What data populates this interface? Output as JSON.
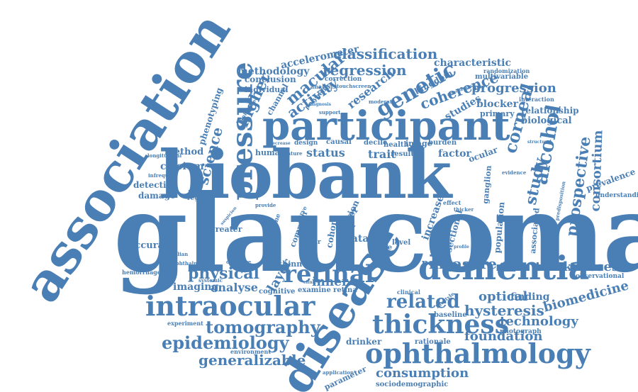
{
  "color": "#4a7fb5",
  "words": [
    "glaucoma",
    "association",
    "biobank",
    "participant",
    "disease",
    "dementia",
    "intraocular",
    "ophthalmology",
    "thickness",
    "retinal",
    "pressure",
    "tomography",
    "epidemiology",
    "genetic",
    "alcohol",
    "classification",
    "regression",
    "measure",
    "related",
    "physical",
    "corneal",
    "study",
    "prospective",
    "consortium",
    "hysteresis",
    "thicknesses",
    "optical",
    "biomedicine",
    "technology",
    "foundation",
    "generalizable",
    "consumption",
    "progression",
    "coherence",
    "activity",
    "macular",
    "higher",
    "science",
    "research",
    "methodology",
    "characteristic",
    "accelerometer",
    "phenotyping",
    "calcium",
    "method",
    "status",
    "trait",
    "inner",
    "layer",
    "analyse",
    "imaging",
    "risk",
    "data",
    "poag",
    "finding",
    "biological",
    "relationship",
    "blocker",
    "kingdom",
    "studies",
    "primary",
    "detection",
    "damage",
    "accuracy",
    "greater",
    "regular",
    "mendelian",
    "hemorrhage",
    "ophthalmic",
    "systemic",
    "cognitive",
    "examine",
    "retina",
    "thinner",
    "drinker",
    "rationale",
    "baseline",
    "experiment",
    "environment",
    "application",
    "parameter",
    "sociodemographic",
    "photograph",
    "understanding",
    "observational",
    "prevalence",
    "evidence",
    "predisposition",
    "ganglion",
    "population",
    "associated",
    "sectional",
    "increase",
    "cohort",
    "vision",
    "fiber",
    "image",
    "factor",
    "ocular",
    "decile",
    "result",
    "health",
    "burden",
    "causal",
    "design",
    "human",
    "feature",
    "individual",
    "conclusion",
    "channel",
    "polygenic",
    "support",
    "correction",
    "analysis",
    "touchscreen",
    "interaction",
    "multivariable",
    "randomization",
    "annotation",
    "moderate",
    "diagnosis",
    "unlabelled",
    "longitudinal",
    "infrequent",
    "structural",
    "decrease",
    "level",
    "code",
    "linear",
    "bank",
    "lifestyle",
    "clinical",
    "outcome",
    "suspicion",
    "common",
    "nerve",
    "objective",
    "provide",
    "effect",
    "thicker",
    "observed",
    "profile",
    "clinic"
  ]
}
